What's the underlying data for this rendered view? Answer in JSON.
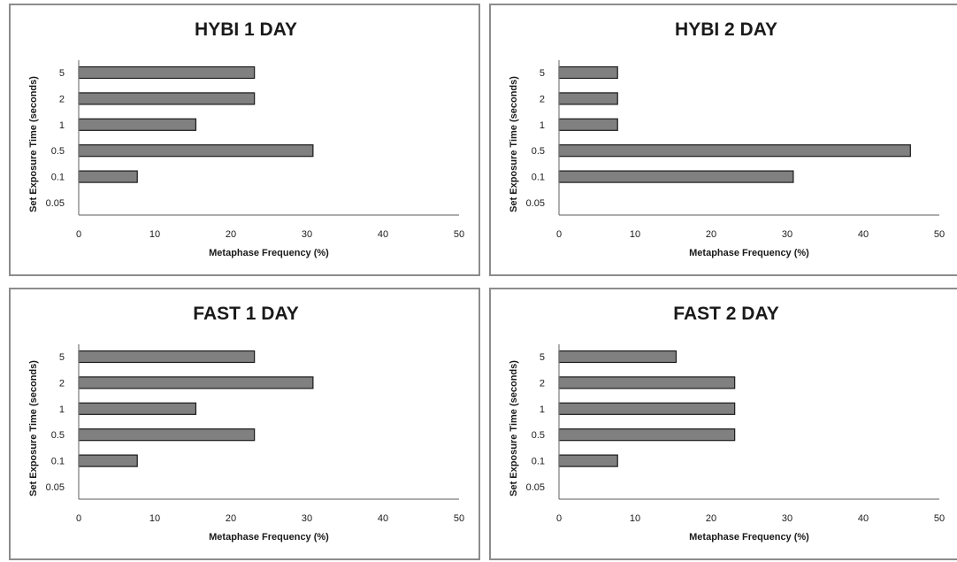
{
  "chart_data": [
    {
      "type": "bar",
      "orientation": "horizontal",
      "title": "HYBI 1 DAY",
      "xlabel": "Metaphase Frequency (%)",
      "ylabel": "Set Exposure Time (seconds)",
      "categories": [
        "0.05",
        "0.1",
        "0.5",
        "1",
        "2",
        "5"
      ],
      "values": [
        0,
        7.7,
        30.8,
        15.4,
        23.1,
        23.1
      ],
      "xlim": [
        0,
        50
      ],
      "xticks": [
        "0",
        "10",
        "20",
        "30",
        "40",
        "50"
      ],
      "grid": false,
      "bar_color": "#808080"
    },
    {
      "type": "bar",
      "orientation": "horizontal",
      "title": "HYBI 2 DAY",
      "xlabel": "Metaphase Frequency (%)",
      "ylabel": "Set Exposure Time (seconds)",
      "categories": [
        "0.05",
        "0.1",
        "0.5",
        "1",
        "2",
        "5"
      ],
      "values": [
        0,
        30.8,
        46.2,
        7.7,
        7.7,
        7.7
      ],
      "xlim": [
        0,
        50
      ],
      "xticks": [
        "0",
        "10",
        "20",
        "30",
        "40",
        "50"
      ],
      "grid": false,
      "bar_color": "#808080"
    },
    {
      "type": "bar",
      "orientation": "horizontal",
      "title": "FAST 1 DAY",
      "xlabel": "Metaphase Frequency (%)",
      "ylabel": "Set Exposure Time (seconds)",
      "categories": [
        "0.05",
        "0.1",
        "0.5",
        "1",
        "2",
        "5"
      ],
      "values": [
        0,
        7.7,
        23.1,
        15.4,
        30.8,
        23.1
      ],
      "xlim": [
        0,
        50
      ],
      "xticks": [
        "0",
        "10",
        "20",
        "30",
        "40",
        "50"
      ],
      "grid": false,
      "bar_color": "#808080"
    },
    {
      "type": "bar",
      "orientation": "horizontal",
      "title": "FAST 2 DAY",
      "xlabel": "Metaphase Frequency (%)",
      "ylabel": "Set Exposure Time (seconds)",
      "categories": [
        "0.05",
        "0.1",
        "0.5",
        "1",
        "2",
        "5"
      ],
      "values": [
        0,
        7.7,
        23.1,
        23.1,
        23.1,
        15.4
      ],
      "xlim": [
        0,
        50
      ],
      "xticks": [
        "0",
        "10",
        "20",
        "30",
        "40",
        "50"
      ],
      "grid": false,
      "bar_color": "#808080"
    }
  ]
}
